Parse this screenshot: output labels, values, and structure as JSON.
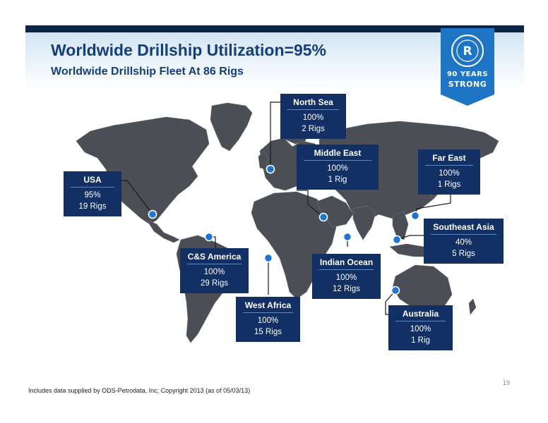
{
  "slide": {
    "title": "Worldwide Drillship Utilization=95%",
    "subtitle": "Worldwide Drillship Fleet At 86 Rigs",
    "page_number": "19",
    "footnote": "Includes data supplied by ODS-Petrodata, Inc; Copyright 2013 (as of 05/03/13)"
  },
  "badge": {
    "logo_letter": "R",
    "line1": "90 YEARS",
    "line2": "STRONG"
  },
  "colors": {
    "brand_navy": "#143f78",
    "box_fill": "#123063",
    "marker_fill": "#1a76d2",
    "continent_fill": "#4b4f55"
  },
  "regions": [
    {
      "id": "north-sea",
      "name": "North Sea",
      "utilization": "100%",
      "rigs": "2 Rigs"
    },
    {
      "id": "middle-east",
      "name": "Middle East",
      "utilization": "100%",
      "rigs": "1 Rig"
    },
    {
      "id": "far-east",
      "name": "Far East",
      "utilization": "100%",
      "rigs": "1 Rigs"
    },
    {
      "id": "usa",
      "name": "USA",
      "utilization": "95%",
      "rigs": "19 Rigs"
    },
    {
      "id": "southeast-asia",
      "name": "Southeast Asia",
      "utilization": "40%",
      "rigs": "5 Rigs"
    },
    {
      "id": "cs-america",
      "name": "C&S America",
      "utilization": "100%",
      "rigs": "29 Rigs"
    },
    {
      "id": "indian-ocean",
      "name": "Indian Ocean",
      "utilization": "100%",
      "rigs": "12 Rigs"
    },
    {
      "id": "west-africa",
      "name": "West Africa",
      "utilization": "100%",
      "rigs": "15 Rigs"
    },
    {
      "id": "australia",
      "name": "Australia",
      "utilization": "100%",
      "rigs": "1 Rig"
    }
  ]
}
